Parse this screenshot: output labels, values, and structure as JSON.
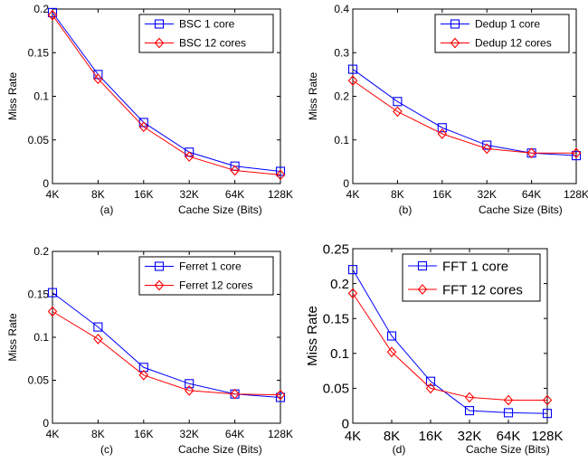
{
  "chart_data": [
    {
      "type": "line",
      "caption": "(a)",
      "xlabel": "Cache Size (Bits)",
      "ylabel": "Miss Rate",
      "categories": [
        "4K",
        "8K",
        "16K",
        "32K",
        "64K",
        "128K"
      ],
      "ylim": [
        0,
        0.2
      ],
      "yticks": [
        "0",
        "0.05",
        "0.1",
        "0.15",
        "0.2"
      ],
      "legend_position": "top-right",
      "series": [
        {
          "name": "BSC 1 core",
          "color": "#0000ff",
          "marker": "square",
          "values": [
            0.196,
            0.125,
            0.07,
            0.036,
            0.02,
            0.014
          ]
        },
        {
          "name": "BSC 12 cores",
          "color": "#ff0000",
          "marker": "diamond",
          "values": [
            0.193,
            0.12,
            0.065,
            0.031,
            0.015,
            0.01
          ]
        }
      ]
    },
    {
      "type": "line",
      "caption": "(b)",
      "xlabel": "Cache Size (Bits)",
      "ylabel": "Miss Rate",
      "categories": [
        "4K",
        "8K",
        "16K",
        "32K",
        "64K",
        "128K"
      ],
      "ylim": [
        0,
        0.4
      ],
      "yticks": [
        "0",
        "0.1",
        "0.2",
        "0.3",
        "0.4"
      ],
      "legend_position": "top-right",
      "series": [
        {
          "name": "Dedup 1 core",
          "color": "#0000ff",
          "marker": "square",
          "values": [
            0.262,
            0.188,
            0.128,
            0.088,
            0.07,
            0.064
          ]
        },
        {
          "name": "Dedup 12 cores",
          "color": "#ff0000",
          "marker": "diamond",
          "values": [
            0.236,
            0.165,
            0.114,
            0.08,
            0.07,
            0.07
          ]
        }
      ]
    },
    {
      "type": "line",
      "caption": "(c)",
      "xlabel": "Cache Size (Bits)",
      "ylabel": "Miss Rate",
      "categories": [
        "4K",
        "8K",
        "16K",
        "32K",
        "64K",
        "128K"
      ],
      "ylim": [
        0,
        0.2
      ],
      "yticks": [
        "0",
        "0.05",
        "0.1",
        "0.15",
        "0.2"
      ],
      "legend_position": "top-right",
      "series": [
        {
          "name": "Ferret 1 core",
          "color": "#0000ff",
          "marker": "square",
          "values": [
            0.152,
            0.112,
            0.065,
            0.046,
            0.034,
            0.03
          ]
        },
        {
          "name": "Ferret 12 cores",
          "color": "#ff0000",
          "marker": "diamond",
          "values": [
            0.13,
            0.098,
            0.056,
            0.038,
            0.034,
            0.033
          ]
        }
      ]
    },
    {
      "type": "line",
      "caption": "(d)",
      "xlabel": "Cache Size (Bits)",
      "ylabel": "Miss Rate",
      "categories": [
        "4K",
        "8K",
        "16K",
        "32K",
        "64K",
        "128K"
      ],
      "ylim": [
        0,
        0.25
      ],
      "yticks": [
        "0",
        "0.05",
        "0.1",
        "0.15",
        "0.2",
        "0.25"
      ],
      "legend_position": "top-right",
      "series": [
        {
          "name": "FFT 1 core",
          "color": "#0000ff",
          "marker": "square",
          "values": [
            0.22,
            0.125,
            0.06,
            0.018,
            0.015,
            0.014
          ]
        },
        {
          "name": "FFT 12 cores",
          "color": "#ff0000",
          "marker": "diamond",
          "values": [
            0.186,
            0.102,
            0.05,
            0.037,
            0.033,
            0.033
          ]
        }
      ]
    }
  ]
}
